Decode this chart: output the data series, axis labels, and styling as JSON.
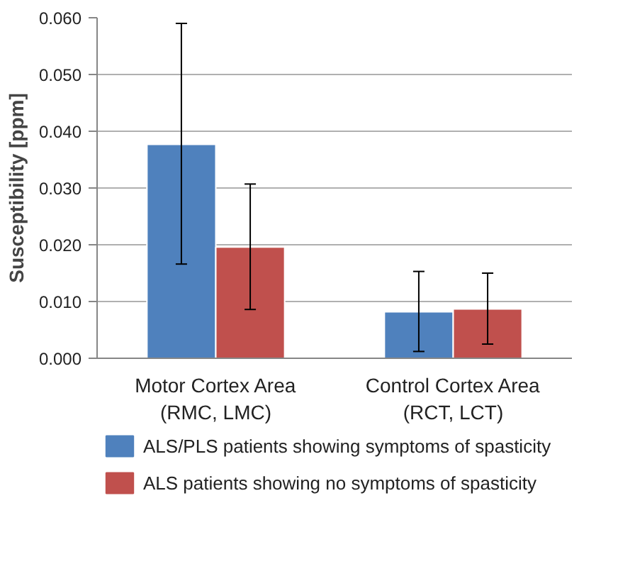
{
  "chart_data": {
    "type": "bar",
    "ylabel": "Susceptibility [ppm]",
    "categories": [
      "Motor Cortex Area\n(RMC, LMC)",
      "Control Cortex Area\n(RCT, LCT)"
    ],
    "series": [
      {
        "name": "ALS/PLS patients showing symptoms of spasticity",
        "color": "#4f81bd",
        "values": [
          0.0377,
          0.0082
        ],
        "errors": [
          [
            0.0166,
            0.059
          ],
          [
            0.0012,
            0.0153
          ]
        ]
      },
      {
        "name": "ALS patients showing no symptoms of spasticity",
        "color": "#c0504d",
        "values": [
          0.0196,
          0.0087
        ],
        "errors": [
          [
            0.0086,
            0.0307
          ],
          [
            0.0025,
            0.015
          ]
        ]
      }
    ],
    "ylim": [
      0,
      0.06
    ],
    "yticks": [
      {
        "value": 0,
        "label": "0.000"
      },
      {
        "value": 0.01,
        "label": "0.010"
      },
      {
        "value": 0.02,
        "label": "0.020"
      },
      {
        "value": 0.03,
        "label": "0.030"
      },
      {
        "value": 0.04,
        "label": "0.040"
      },
      {
        "value": 0.05,
        "label": "0.050"
      },
      {
        "value": 0.06,
        "label": "0.060"
      }
    ],
    "grid": "y",
    "legend": "bottom"
  }
}
